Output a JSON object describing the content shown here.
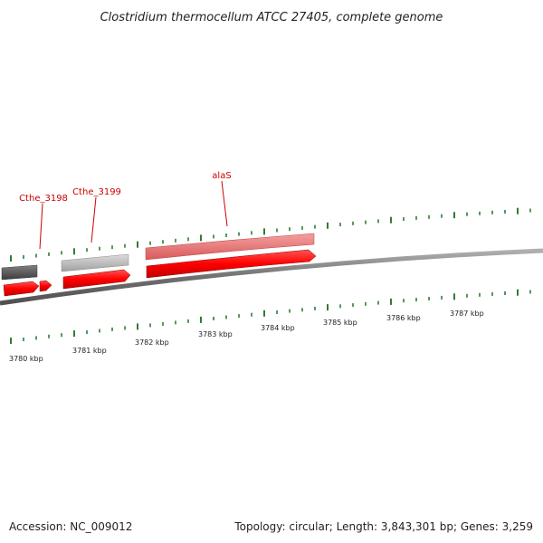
{
  "title": "Clostridium thermocellum ATCC 27405, complete genome",
  "footer": {
    "accession": "Accession: NC_009012",
    "summary": "Topology: circular; Length: 3,843,301 bp; Genes: 3,259"
  },
  "genes": [
    {
      "name": "Cthe_3198"
    },
    {
      "name": "Cthe_3199"
    },
    {
      "name": "alaS"
    }
  ],
  "scale": {
    "unit": "kbp",
    "labels": [
      "3780 kbp",
      "3781 kbp",
      "3782 kbp",
      "3783 kbp",
      "3784 kbp",
      "3785 kbp",
      "3786 kbp",
      "3787 kbp"
    ]
  },
  "colors": {
    "gene_fill": "#ff0000",
    "gene_highlight": "#f08080",
    "gene_grey": "#b4b4b4",
    "gene_dark": "#5a5a5a",
    "backbone": "#7a7a7a",
    "tick": "#2e7d32",
    "label": "#cc0000"
  }
}
